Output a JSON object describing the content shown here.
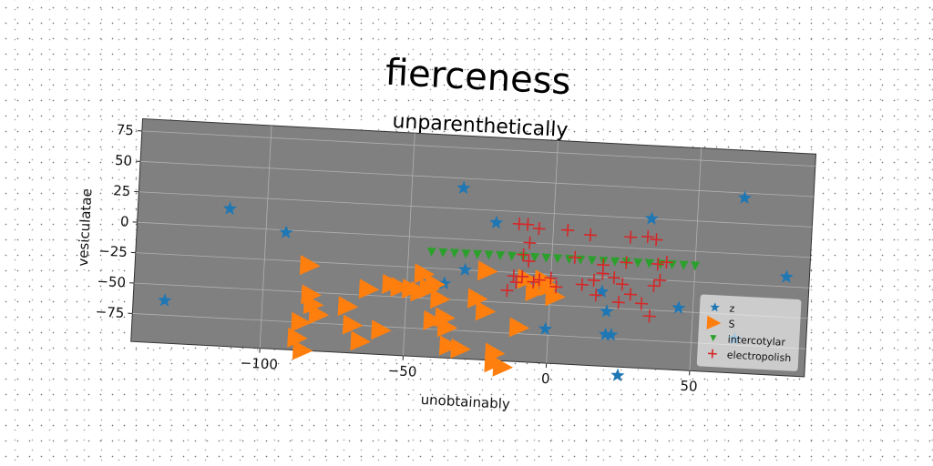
{
  "chart_data": {
    "type": "scatter",
    "title": "fierceness",
    "subtitle": "unparenthetically",
    "xlabel": "unobtainably",
    "ylabel": "vesiculatae",
    "xlim": [
      -145,
      90
    ],
    "ylim": [
      -98,
      85
    ],
    "xticks": [
      -100,
      -50,
      0,
      50
    ],
    "xtick_labels": [
      "−100",
      "−50",
      "0",
      "50"
    ],
    "yticks": [
      75,
      50,
      25,
      0,
      -25,
      -50,
      -75
    ],
    "ytick_labels": [
      "75",
      "50",
      "25",
      "0",
      "−25",
      "−50",
      "−75"
    ],
    "grid": true,
    "legend_position": "bottom-right",
    "series": [
      {
        "name": "z",
        "color": "#1f77b4",
        "marker": "star",
        "points": [
          [
            -113,
            15
          ],
          [
            -93,
            -2
          ],
          [
            -134,
            -63
          ],
          [
            -32,
            42
          ],
          [
            -20,
            15
          ],
          [
            -30,
            -25
          ],
          [
            -37,
            -37
          ],
          [
            -1,
            -70
          ],
          [
            20,
            -53
          ],
          [
            18,
            -37
          ],
          [
            20,
            -72
          ],
          [
            22,
            -72
          ],
          [
            25,
            -105
          ],
          [
            34,
            25
          ],
          [
            45,
            -47
          ],
          [
            66,
            46
          ],
          [
            65,
            -70
          ],
          [
            82,
            -17
          ]
        ]
      },
      {
        "name": "S",
        "color": "#ff7f0e",
        "marker": "triangle-right",
        "points": [
          [
            -84,
            -28
          ],
          [
            -83,
            -52
          ],
          [
            -82,
            -60
          ],
          [
            -80,
            -68
          ],
          [
            -86,
            -75
          ],
          [
            -87,
            -88
          ],
          [
            -85,
            -98
          ],
          [
            -70,
            -60
          ],
          [
            -68,
            -75
          ],
          [
            -65,
            -88
          ],
          [
            -63,
            -45
          ],
          [
            -58,
            -78
          ],
          [
            -55,
            -40
          ],
          [
            -52,
            -42
          ],
          [
            -48,
            -43
          ],
          [
            -45,
            -45
          ],
          [
            -42,
            -42
          ],
          [
            -40,
            -38
          ],
          [
            -44,
            -30
          ],
          [
            -38,
            -50
          ],
          [
            -36,
            -65
          ],
          [
            -35,
            -73
          ],
          [
            -34,
            -88
          ],
          [
            -30,
            -90
          ],
          [
            -25,
            -48
          ],
          [
            -22,
            -25
          ],
          [
            -22,
            -58
          ],
          [
            -18,
            -92
          ],
          [
            -18,
            -100
          ],
          [
            -15,
            -103
          ],
          [
            -10,
            -70
          ],
          [
            -8,
            -30
          ],
          [
            -5,
            -40
          ],
          [
            -2,
            -30
          ],
          [
            0,
            -35
          ],
          [
            2,
            -43
          ],
          [
            -40,
            -68
          ]
        ]
      },
      {
        "name": "intercotylar",
        "color": "#2ca02c",
        "marker": "triangle-down",
        "points": [
          [
            -42,
            -12
          ],
          [
            -38,
            -12
          ],
          [
            -34,
            -12
          ],
          [
            -30,
            -12
          ],
          [
            -26,
            -12
          ],
          [
            -22,
            -12
          ],
          [
            -18,
            -12
          ],
          [
            -14,
            -12
          ],
          [
            -10,
            -12
          ],
          [
            -6,
            -12
          ],
          [
            -2,
            -12
          ],
          [
            2,
            -12
          ],
          [
            6,
            -12
          ],
          [
            10,
            -12
          ],
          [
            14,
            -12
          ],
          [
            18,
            -12
          ],
          [
            22,
            -12
          ],
          [
            26,
            -12
          ],
          [
            30,
            -12
          ],
          [
            34,
            -12
          ],
          [
            38,
            -12
          ],
          [
            42,
            -12
          ],
          [
            46,
            -12
          ],
          [
            50,
            -12
          ]
        ]
      },
      {
        "name": "electropolish",
        "color": "#d62728",
        "marker": "plus",
        "points": [
          [
            -12,
            15
          ],
          [
            -9,
            15
          ],
          [
            -5,
            12
          ],
          [
            5,
            12
          ],
          [
            13,
            9
          ],
          [
            27,
            9
          ],
          [
            33,
            10
          ],
          [
            36,
            8
          ],
          [
            -8,
            0
          ],
          [
            -10,
            -10
          ],
          [
            -8,
            -15
          ],
          [
            8,
            -10
          ],
          [
            18,
            -15
          ],
          [
            26,
            -12
          ],
          [
            37,
            -12
          ],
          [
            40,
            -10
          ],
          [
            -13,
            -28
          ],
          [
            -12,
            -33
          ],
          [
            -4,
            -30
          ],
          [
            2,
            -35
          ],
          [
            11,
            -32
          ],
          [
            15,
            -28
          ],
          [
            18,
            -22
          ],
          [
            22,
            -25
          ],
          [
            25,
            -30
          ],
          [
            28,
            -38
          ],
          [
            32,
            -45
          ],
          [
            35,
            -55
          ],
          [
            24,
            -45
          ],
          [
            16,
            -40
          ],
          [
            36,
            -30
          ],
          [
            38,
            -25
          ],
          [
            -15,
            -40
          ],
          [
            -6,
            -32
          ],
          [
            0,
            -28
          ],
          [
            -10,
            -28
          ]
        ]
      }
    ]
  }
}
